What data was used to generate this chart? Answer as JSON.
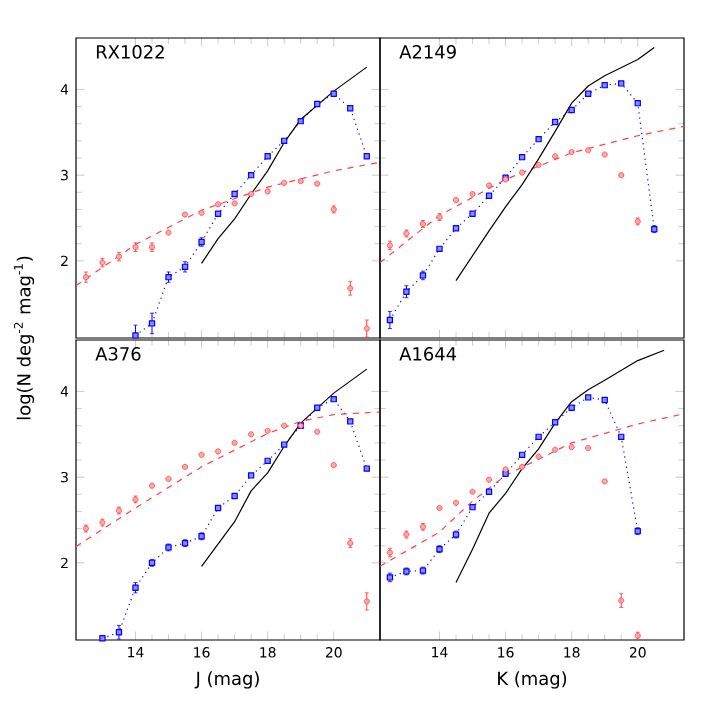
{
  "chart_data": [
    {
      "type": "line",
      "title": "RX1022",
      "ylabel": "log(N deg$^{-2}$ mag$^{-1}$)",
      "xlim": [
        12.2,
        21.4
      ],
      "ylim": [
        1.1,
        4.6
      ],
      "xticks": [
        14,
        16,
        18,
        20
      ],
      "yticks": [
        2,
        3,
        4
      ],
      "tick_labels": "y",
      "series": [
        {
          "type": "line",
          "color": "#0000ff",
          "marker": "square",
          "line_style": "dotted",
          "x": [
            14,
            14.5,
            15,
            15.5,
            16,
            16.5,
            17,
            17.5,
            18,
            18.5,
            19,
            19.5,
            20,
            20.5,
            21
          ],
          "values": [
            1.13,
            1.27,
            1.81,
            1.93,
            2.22,
            2.55,
            2.78,
            3.0,
            3.22,
            3.4,
            3.63,
            3.83,
            3.95,
            3.78,
            3.22
          ],
          "errors": [
            0.12,
            0.12,
            0.06,
            0.06,
            0.05,
            null,
            null,
            null,
            null,
            null,
            null,
            null,
            null,
            null,
            null
          ]
        },
        {
          "type": "scatter",
          "color": "#ff4040",
          "marker": "circle",
          "x": [
            12.5,
            13,
            13.5,
            14,
            14.5,
            15,
            15.5,
            16,
            16.5,
            17,
            17.5,
            18,
            18.5,
            19,
            19.5,
            20,
            20.5,
            21
          ],
          "values": [
            1.81,
            1.98,
            2.05,
            2.16,
            2.16,
            2.33,
            2.54,
            2.56,
            2.66,
            2.67,
            2.78,
            2.81,
            2.91,
            2.93,
            2.9,
            2.6,
            1.68,
            1.21
          ],
          "errors": [
            0.06,
            0.05,
            0.05,
            0.05,
            0.05,
            null,
            null,
            null,
            null,
            null,
            null,
            null,
            null,
            null,
            null,
            0.04,
            0.08,
            0.1
          ]
        },
        {
          "type": "line",
          "color": "#ff4040",
          "marker": "none",
          "line_style": "dashed",
          "x": [
            12.2,
            14,
            16,
            18,
            20,
            21.4
          ],
          "values": [
            1.71,
            2.19,
            2.59,
            2.86,
            3.05,
            3.15
          ]
        },
        {
          "type": "line",
          "color": "#000000",
          "marker": "none",
          "line_style": "solid",
          "x": [
            16,
            16.5,
            17,
            17.5,
            18,
            18.5,
            19,
            20,
            21
          ],
          "values": [
            1.97,
            2.26,
            2.49,
            2.78,
            3.05,
            3.38,
            3.65,
            3.98,
            4.26
          ]
        }
      ]
    },
    {
      "type": "line",
      "title": "A2149",
      "xlim": [
        12.2,
        21.4
      ],
      "ylim": [
        1.1,
        4.6
      ],
      "xticks": [
        14,
        16,
        18,
        20
      ],
      "yticks": [
        2,
        3,
        4
      ],
      "tick_labels": false,
      "series": [
        {
          "type": "line",
          "color": "#0000ff",
          "marker": "square",
          "line_style": "dotted",
          "x": [
            12.5,
            13,
            13.5,
            14,
            14.5,
            15,
            15.5,
            16,
            16.5,
            17,
            17.5,
            18,
            18.5,
            19,
            19.5,
            20,
            20.5
          ],
          "values": [
            1.31,
            1.64,
            1.83,
            2.14,
            2.38,
            2.55,
            2.76,
            2.97,
            3.21,
            3.42,
            3.62,
            3.76,
            3.95,
            4.05,
            4.07,
            3.84,
            2.37
          ],
          "errors": [
            0.1,
            0.07,
            0.05,
            null,
            null,
            null,
            null,
            null,
            null,
            null,
            null,
            null,
            null,
            null,
            null,
            null,
            0.04
          ]
        },
        {
          "type": "scatter",
          "color": "#ff4040",
          "marker": "circle",
          "x": [
            12.5,
            13,
            13.5,
            14,
            14.5,
            15,
            15.5,
            16,
            16.5,
            17,
            17.5,
            18,
            18.5,
            19,
            19.5,
            20
          ],
          "values": [
            2.18,
            2.32,
            2.43,
            2.51,
            2.71,
            2.78,
            2.88,
            2.95,
            3.03,
            3.12,
            3.22,
            3.27,
            3.29,
            3.24,
            3.0,
            2.46
          ],
          "errors": [
            0.05,
            0.04,
            0.04,
            0.04,
            null,
            null,
            null,
            null,
            null,
            null,
            null,
            null,
            null,
            null,
            null,
            0.04
          ]
        },
        {
          "type": "line",
          "color": "#ff4040",
          "marker": "none",
          "line_style": "dashed",
          "x": [
            12.2,
            14,
            16,
            18,
            20,
            21.4
          ],
          "values": [
            1.98,
            2.53,
            2.95,
            3.26,
            3.46,
            3.57
          ]
        },
        {
          "type": "line",
          "color": "#000000",
          "marker": "none",
          "line_style": "solid",
          "x": [
            14.5,
            15,
            15.5,
            16,
            16.5,
            17,
            17.5,
            18,
            18.5,
            19,
            20,
            20.5
          ],
          "values": [
            1.77,
            2.06,
            2.35,
            2.63,
            2.89,
            3.19,
            3.51,
            3.84,
            4.04,
            4.16,
            4.35,
            4.49
          ]
        }
      ]
    },
    {
      "type": "line",
      "title": "A376",
      "xlabel": "J (mag)",
      "xlim": [
        12.2,
        21.4
      ],
      "ylim": [
        1.1,
        4.6
      ],
      "xticks": [
        14,
        16,
        18,
        20
      ],
      "yticks": [
        2,
        3,
        4
      ],
      "series": [
        {
          "type": "line",
          "color": "#0000ff",
          "marker": "square",
          "line_style": "dotted",
          "x": [
            13,
            13.5,
            14,
            14.5,
            15,
            15.5,
            16,
            16.5,
            17,
            17.5,
            18,
            18.5,
            19,
            19.5,
            20,
            20.5,
            21
          ],
          "values": [
            1.12,
            1.19,
            1.71,
            2.0,
            2.18,
            2.23,
            2.31,
            2.64,
            2.78,
            3.02,
            3.19,
            3.38,
            3.6,
            3.81,
            3.91,
            3.65,
            3.1
          ],
          "errors": [
            null,
            0.08,
            0.06,
            0.04,
            0.04,
            0.04,
            0.04,
            null,
            null,
            null,
            null,
            null,
            null,
            null,
            null,
            null,
            null
          ]
        },
        {
          "type": "scatter",
          "color": "#ff4040",
          "marker": "circle",
          "x": [
            12.5,
            13,
            13.5,
            14,
            14.5,
            15,
            15.5,
            16,
            16.5,
            17,
            17.5,
            18,
            18.5,
            19,
            19.5,
            20,
            20.5,
            21
          ],
          "values": [
            2.4,
            2.47,
            2.61,
            2.74,
            2.9,
            2.98,
            3.12,
            3.26,
            3.3,
            3.4,
            3.5,
            3.54,
            3.6,
            3.6,
            3.53,
            3.14,
            2.23,
            1.55
          ],
          "errors": [
            0.04,
            0.04,
            0.04,
            0.04,
            null,
            null,
            null,
            null,
            null,
            null,
            null,
            null,
            null,
            null,
            null,
            null,
            0.05,
            0.1
          ]
        },
        {
          "type": "line",
          "color": "#ff4040",
          "marker": "none",
          "line_style": "dashed",
          "x": [
            12.2,
            14,
            16,
            18,
            19,
            20,
            21.4
          ],
          "values": [
            2.19,
            2.64,
            3.12,
            3.51,
            3.65,
            3.73,
            3.76
          ]
        },
        {
          "type": "line",
          "color": "#000000",
          "marker": "none",
          "line_style": "solid",
          "x": [
            16,
            17,
            17.5,
            18,
            18.5,
            19,
            20,
            21
          ],
          "values": [
            1.96,
            2.48,
            2.84,
            3.05,
            3.36,
            3.63,
            3.98,
            4.26
          ]
        }
      ]
    },
    {
      "type": "line",
      "title": "A1644",
      "xlabel": "K (mag)",
      "xlim": [
        12.2,
        21.4
      ],
      "ylim": [
        1.1,
        4.6
      ],
      "xticks": [
        14,
        16,
        18,
        20
      ],
      "yticks": [
        2,
        3,
        4
      ],
      "tick_labels": "x",
      "series": [
        {
          "type": "line",
          "color": "#0000ff",
          "marker": "square",
          "line_style": "dotted",
          "x": [
            12.5,
            13,
            13.5,
            14,
            14.5,
            15,
            15.5,
            16,
            16.5,
            17,
            17.5,
            18,
            18.5,
            19,
            19.5,
            20
          ],
          "values": [
            1.83,
            1.9,
            1.91,
            2.16,
            2.33,
            2.65,
            2.83,
            3.04,
            3.26,
            3.47,
            3.64,
            3.81,
            3.93,
            3.9,
            3.47,
            2.37
          ],
          "errors": [
            0.05,
            0.04,
            0.04,
            0.04,
            0.04,
            null,
            null,
            null,
            null,
            null,
            null,
            null,
            null,
            null,
            null,
            0.04
          ]
        },
        {
          "type": "scatter",
          "color": "#ff4040",
          "marker": "circle",
          "x": [
            12.5,
            13,
            13.5,
            14,
            14.5,
            15,
            15.5,
            16,
            16.5,
            17,
            17.5,
            18,
            18.5,
            19,
            19.5,
            20
          ],
          "values": [
            2.12,
            2.33,
            2.42,
            2.64,
            2.7,
            2.83,
            2.97,
            3.09,
            3.12,
            3.24,
            3.32,
            3.35,
            3.34,
            2.95,
            1.56,
            1.15
          ],
          "errors": [
            0.05,
            0.04,
            0.04,
            null,
            null,
            null,
            null,
            null,
            null,
            null,
            null,
            null,
            null,
            null,
            0.08,
            0.04
          ]
        },
        {
          "type": "line",
          "color": "#ff4040",
          "marker": "none",
          "line_style": "dashed",
          "x": [
            12.2,
            14,
            15,
            16,
            18,
            20,
            21.4
          ],
          "values": [
            1.96,
            2.36,
            2.72,
            3.02,
            3.4,
            3.62,
            3.74
          ]
        },
        {
          "type": "line",
          "color": "#000000",
          "marker": "none",
          "line_style": "solid",
          "x": [
            14.5,
            15,
            15.5,
            16,
            16.5,
            17,
            17.5,
            18,
            18.5,
            19,
            20,
            20.8
          ],
          "values": [
            1.77,
            2.16,
            2.58,
            2.81,
            3.1,
            3.33,
            3.63,
            3.88,
            4.02,
            4.13,
            4.36,
            4.48
          ]
        }
      ]
    }
  ]
}
